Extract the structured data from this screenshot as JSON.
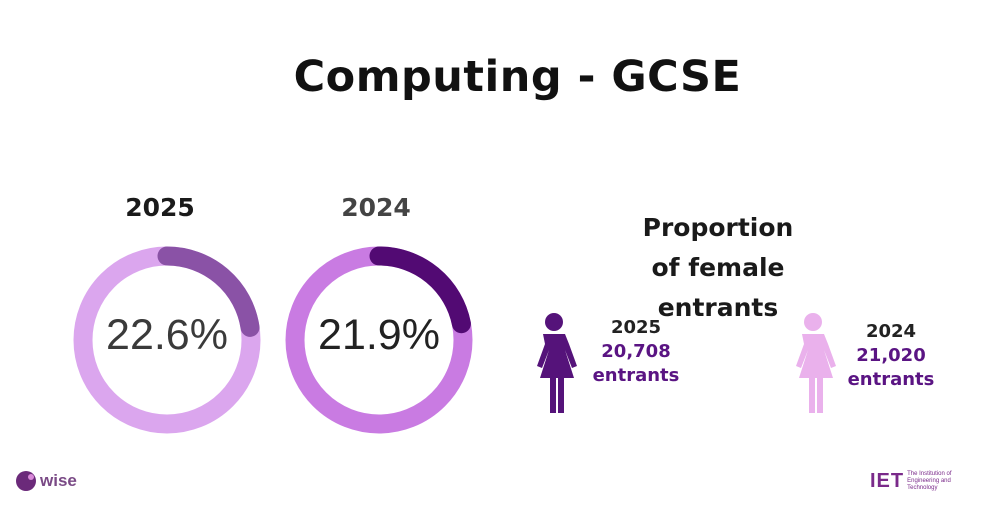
{
  "title": "Computing - GCSE",
  "colors": {
    "donut_2025_track": "#dba6ee",
    "donut_2025_fill": "#8a52a6",
    "donut_2024_track": "#c97be2",
    "donut_2024_fill": "#520a73",
    "figure_2025": "#55137a",
    "figure_2024": "#eab1ec",
    "accent_text": "#5a1483"
  },
  "chart_data": [
    {
      "type": "pie",
      "style": "donut",
      "title": "2025",
      "value_label": "22.6%",
      "values": [
        22.6,
        77.4
      ]
    },
    {
      "type": "pie",
      "style": "donut",
      "title": "2024",
      "value_label": "21.9%",
      "values": [
        21.9,
        78.1
      ]
    }
  ],
  "proportion": {
    "title_line1": "Proportion",
    "title_line2": "of female entrants",
    "stats": [
      {
        "year": "2025",
        "count": "20,708",
        "unit": "entrants",
        "icon": "female-figure-icon"
      },
      {
        "year": "2024",
        "count": "21,020",
        "unit": "entrants",
        "icon": "female-figure-icon"
      }
    ]
  },
  "logos": {
    "wise": "wise",
    "iet_mark": "IET",
    "iet_line1": "The Institution of",
    "iet_line2": "Engineering and Technology"
  }
}
